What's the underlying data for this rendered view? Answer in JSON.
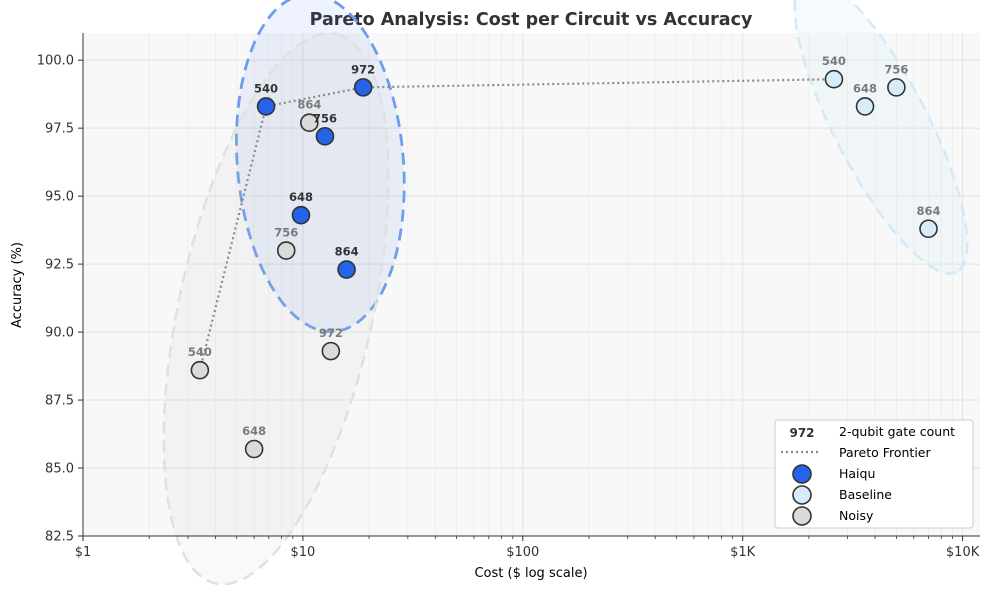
{
  "chart_data": {
    "type": "scatter",
    "title": "Pareto Analysis: Cost per Circuit vs Accuracy",
    "xlabel": "Cost ($ log scale)",
    "ylabel": "Accuracy (%)",
    "x_scale": "log",
    "xlim": [
      1,
      12000
    ],
    "ylim": [
      82.5,
      101
    ],
    "x_ticks": [
      {
        "value": 1,
        "label": "$1"
      },
      {
        "value": 10,
        "label": "$10"
      },
      {
        "value": 100,
        "label": "$100"
      },
      {
        "value": 1000,
        "label": "$1K"
      },
      {
        "value": 10000,
        "label": "$10K"
      }
    ],
    "y_ticks": [
      {
        "value": 82.5,
        "label": "82.5"
      },
      {
        "value": 85.0,
        "label": "85.0"
      },
      {
        "value": 87.5,
        "label": "87.5"
      },
      {
        "value": 90.0,
        "label": "90.0"
      },
      {
        "value": 92.5,
        "label": "92.5"
      },
      {
        "value": 95.0,
        "label": "95.0"
      },
      {
        "value": 97.5,
        "label": "97.5"
      },
      {
        "value": 100.0,
        "label": "100.0"
      }
    ],
    "grid": true,
    "legend_position": "bottom-right",
    "legend": {
      "gate_count_sample": "972",
      "gate_count_label": "2-qubit gate count",
      "frontier_label": "Pareto Frontier"
    },
    "series": [
      {
        "name": "Haiqu",
        "color": "#2563eb",
        "points": [
          {
            "x": 6.8,
            "y": 98.3,
            "label": "540"
          },
          {
            "x": 9.8,
            "y": 94.3,
            "label": "648"
          },
          {
            "x": 12.6,
            "y": 97.2,
            "label": "756"
          },
          {
            "x": 15.8,
            "y": 92.3,
            "label": "864"
          },
          {
            "x": 18.8,
            "y": 99.0,
            "label": "972"
          }
        ]
      },
      {
        "name": "Baseline",
        "color": "#d6ecf8",
        "points": [
          {
            "x": 2600,
            "y": 99.3,
            "label": "540"
          },
          {
            "x": 3600,
            "y": 98.3,
            "label": "648"
          },
          {
            "x": 5000,
            "y": 99.0,
            "label": "756"
          },
          {
            "x": 7000,
            "y": 93.8,
            "label": "864"
          }
        ]
      },
      {
        "name": "Noisy",
        "color": "#dadada",
        "points": [
          {
            "x": 3.4,
            "y": 88.6,
            "label": "540"
          },
          {
            "x": 6.0,
            "y": 85.7,
            "label": "648"
          },
          {
            "x": 8.4,
            "y": 93.0,
            "label": "756"
          },
          {
            "x": 10.7,
            "y": 97.7,
            "label": "864"
          },
          {
            "x": 13.4,
            "y": 89.3,
            "label": "972"
          }
        ]
      }
    ],
    "pareto_frontier": [
      {
        "x": 3.4,
        "y": 88.6
      },
      {
        "x": 6.8,
        "y": 98.3
      },
      {
        "x": 18.8,
        "y": 99.0
      },
      {
        "x": 2600,
        "y": 99.3
      }
    ]
  }
}
